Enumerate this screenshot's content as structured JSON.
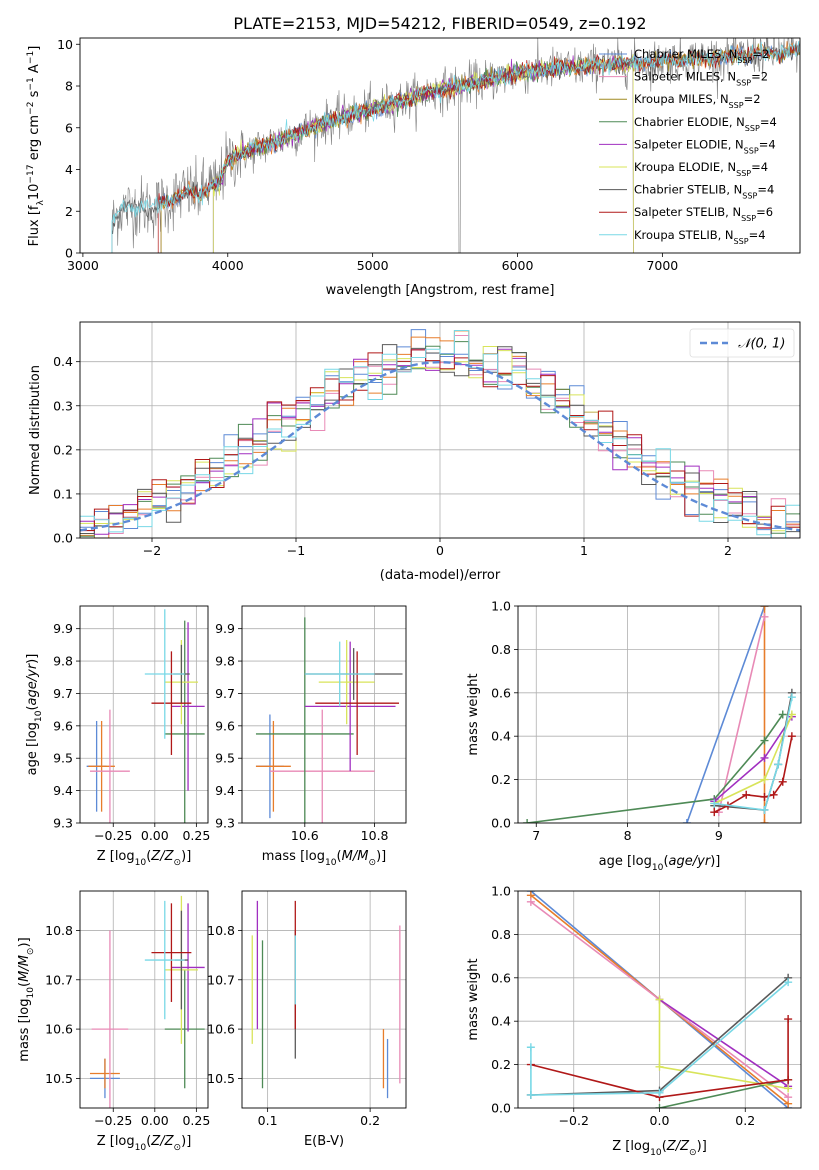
{
  "page_title": "PLATE=2153, MJD=54212, FIBERID=0549, z=0.192",
  "colors": {
    "Chabrier MILES": "#5d8ad6",
    "Salpeter MILES": "#e88ab6",
    "Kroupa MILES": "#a08a20",
    "Chabrier ELODIE": "#4e8a56",
    "Salpeter ELODIE": "#a12fc0",
    "Kroupa ELODIE": "#d8e45a",
    "Chabrier STELIB": "#5a5a5a",
    "Salpeter STELIB": "#b01818",
    "Kroupa STELIB": "#78d8e6",
    "extra_orange": "#e77d2b",
    "data_gray": "#808080",
    "gauss": "#5d8ad6"
  },
  "chart_data": [
    {
      "id": "spectrum",
      "type": "line",
      "title": "PLATE=2153, MJD=54212, FIBERID=0549, z=0.192",
      "xlabel": "wavelength [Angstrom, rest frame]",
      "ylabel": "Flux [f_λ 10^-17 erg cm^-2 s^-1 A^-1]",
      "xlim": [
        2980,
        7950
      ],
      "ylim": [
        0,
        10.3
      ],
      "xticks": [
        "3000",
        "4000",
        "5000",
        "6000",
        "7000"
      ],
      "yticks": [
        "0",
        "2",
        "4",
        "6",
        "8",
        "10"
      ],
      "legend_position": "top-right",
      "series": [
        {
          "name": "Chabrier MILES, N_SSP=2",
          "x_range": [
            3540,
            7950
          ]
        },
        {
          "name": "Salpeter MILES, N_SSP=2",
          "x_range": [
            3540,
            7950
          ]
        },
        {
          "name": "Kroupa MILES, N_SSP=2",
          "x_range": [
            3540,
            7950
          ]
        },
        {
          "name": "Chabrier ELODIE, N_SSP=4",
          "x_range": [
            3900,
            6800
          ]
        },
        {
          "name": "Salpeter ELODIE, N_SSP=4",
          "x_range": [
            3900,
            6800
          ]
        },
        {
          "name": "Kroupa ELODIE, N_SSP=4",
          "x_range": [
            3900,
            6800
          ]
        },
        {
          "name": "Chabrier STELIB, N_SSP=4",
          "x_range": [
            3200,
            7950
          ]
        },
        {
          "name": "Salpeter STELIB, N_SSP=6",
          "x_range": [
            3520,
            7950
          ]
        },
        {
          "name": "Kroupa STELIB, N_SSP=4",
          "x_range": [
            3200,
            7950
          ]
        }
      ],
      "continuum": [
        [
          3200,
          1.3
        ],
        [
          3230,
          1.8
        ],
        [
          3260,
          2.1
        ],
        [
          3350,
          2.2
        ],
        [
          3500,
          2.2
        ],
        [
          3600,
          2.5
        ],
        [
          3700,
          2.9
        ],
        [
          3800,
          2.8
        ],
        [
          3880,
          3.3
        ],
        [
          3930,
          3.2
        ],
        [
          4000,
          4.4
        ],
        [
          4100,
          4.8
        ],
        [
          4200,
          5.0
        ],
        [
          4300,
          5.3
        ],
        [
          4400,
          5.5
        ],
        [
          4600,
          6.1
        ],
        [
          4800,
          6.5
        ],
        [
          5000,
          6.9
        ],
        [
          5200,
          7.3
        ],
        [
          5400,
          7.7
        ],
        [
          5600,
          8.0
        ],
        [
          5800,
          8.3
        ],
        [
          6000,
          8.6
        ],
        [
          6200,
          8.8
        ],
        [
          6400,
          8.9
        ],
        [
          6600,
          9.0
        ],
        [
          6800,
          9.1
        ],
        [
          7000,
          9.2
        ],
        [
          7200,
          9.3
        ],
        [
          7400,
          9.4
        ],
        [
          7600,
          9.5
        ],
        [
          7800,
          9.6
        ],
        [
          7950,
          9.7
        ]
      ]
    },
    {
      "id": "residuals",
      "type": "histogram",
      "xlabel": "(data-model)/error",
      "ylabel": "Normed distribution",
      "xlim": [
        -2.5,
        2.5
      ],
      "ylim": [
        0,
        0.49
      ],
      "xticks": [
        "−2",
        "−1",
        "0",
        "1",
        "2"
      ],
      "yticks": [
        "0.0",
        "0.1",
        "0.2",
        "0.3",
        "0.4"
      ],
      "bin_width": 0.1,
      "gauss_label": "𝒩(0, 1)",
      "legend_position": "top-right",
      "grid": true
    },
    {
      "id": "age_vs_Z",
      "type": "errorbar",
      "xlabel": "Z [log10(Z/Z⊙)]",
      "ylabel": "age [log10(age/yr)]",
      "xlim": [
        -0.45,
        0.32
      ],
      "ylim": [
        9.3,
        9.97
      ],
      "xticks": [
        "−0.25",
        "0.00",
        "0.25"
      ],
      "yticks": [
        "9.3",
        "9.4",
        "9.5",
        "9.6",
        "9.7",
        "9.8",
        "9.9"
      ],
      "points": [
        {
          "s": "Chabrier MILES",
          "x": -0.35,
          "xe": 0.06,
          "y": 9.475,
          "ye": 0.14
        },
        {
          "s": "extra_orange",
          "x": -0.32,
          "xe": 0.08,
          "y": 9.475,
          "ye": 0.14
        },
        {
          "s": "Salpeter MILES",
          "x": -0.27,
          "xe": 0.12,
          "y": 9.46,
          "ye": 0.19
        },
        {
          "s": "Chabrier ELODIE",
          "x": 0.18,
          "xe": 0.12,
          "y": 9.575,
          "ye": 0.35
        },
        {
          "s": "Salpeter ELODIE",
          "x": 0.2,
          "xe": 0.1,
          "y": 9.66,
          "ye": 0.26
        },
        {
          "s": "Kroupa ELODIE",
          "x": 0.16,
          "xe": 0.1,
          "y": 9.735,
          "ye": 0.13
        },
        {
          "s": "Chabrier STELIB",
          "x": 0.16,
          "xe": 0.05,
          "y": 9.76,
          "ye": 0.09
        },
        {
          "s": "Salpeter STELIB",
          "x": 0.1,
          "xe": 0.12,
          "y": 9.67,
          "ye": 0.16
        },
        {
          "s": "Kroupa STELIB",
          "x": 0.06,
          "xe": 0.12,
          "y": 9.76,
          "ye": 0.2
        }
      ]
    },
    {
      "id": "age_vs_mass",
      "type": "errorbar",
      "xlabel": "mass [log10(M/M⊙)]",
      "ylabel": "",
      "xlim": [
        10.42,
        10.89
      ],
      "ylim": [
        9.3,
        9.97
      ],
      "xticks": [
        "10.6",
        "10.8"
      ],
      "yticks": [
        "9.3",
        "9.4",
        "9.5",
        "9.6",
        "9.7",
        "9.8",
        "9.9"
      ],
      "points": [
        {
          "s": "Chabrier MILES",
          "x": 10.5,
          "xe": 0.04,
          "y": 9.475,
          "ye": 0.16
        },
        {
          "s": "extra_orange",
          "x": 10.51,
          "xe": 0.05,
          "y": 9.475,
          "ye": 0.14
        },
        {
          "s": "Salpeter MILES",
          "x": 10.65,
          "xe": 0.15,
          "y": 9.46,
          "ye": 0.19
        },
        {
          "s": "Chabrier ELODIE",
          "x": 10.6,
          "xe": 0.14,
          "y": 9.575,
          "ye": 0.36
        },
        {
          "s": "Salpeter ELODIE",
          "x": 10.73,
          "xe": 0.13,
          "y": 9.66,
          "ye": 0.2
        },
        {
          "s": "Kroupa ELODIE",
          "x": 10.72,
          "xe": 0.08,
          "y": 9.735,
          "ye": 0.13
        },
        {
          "s": "Chabrier STELIB",
          "x": 10.74,
          "xe": 0.14,
          "y": 9.76,
          "ye": 0.08
        },
        {
          "s": "Salpeter STELIB",
          "x": 10.75,
          "xe": 0.12,
          "y": 9.67,
          "ye": 0.16
        },
        {
          "s": "Kroupa STELIB",
          "x": 10.7,
          "xe": 0.1,
          "y": 9.76,
          "ye": 0.1
        }
      ]
    },
    {
      "id": "weight_vs_age",
      "type": "line",
      "xlabel": "age [log10(age/yr)]",
      "ylabel": "mass weight",
      "xlim": [
        6.8,
        9.9
      ],
      "ylim": [
        0,
        1
      ],
      "xticks": [
        "7",
        "8",
        "9"
      ],
      "yticks": [
        "0.0",
        "0.2",
        "0.4",
        "0.6",
        "0.8",
        "1.0"
      ],
      "grid": true,
      "series": [
        {
          "s": "Chabrier MILES",
          "pts": [
            [
              8.65,
              0.0
            ],
            [
              9.5,
              1.0
            ]
          ]
        },
        {
          "s": "extra_orange",
          "pts": [
            [
              9.5,
              0.0
            ],
            [
              9.5,
              1.0
            ]
          ]
        },
        {
          "s": "Salpeter MILES",
          "pts": [
            [
              9.0,
              0.05
            ],
            [
              9.5,
              0.95
            ]
          ]
        },
        {
          "s": "Chabrier ELODIE",
          "pts": [
            [
              6.9,
              0.0
            ],
            [
              8.95,
              0.11
            ],
            [
              9.5,
              0.38
            ],
            [
              9.7,
              0.5
            ]
          ]
        },
        {
          "s": "Salpeter ELODIE",
          "pts": [
            [
              8.95,
              0.1
            ],
            [
              9.5,
              0.3
            ],
            [
              9.8,
              0.49
            ]
          ]
        },
        {
          "s": "Kroupa ELODIE",
          "pts": [
            [
              8.95,
              0.09
            ],
            [
              9.5,
              0.2
            ],
            [
              9.8,
              0.5
            ]
          ]
        },
        {
          "s": "Chabrier STELIB",
          "pts": [
            [
              8.95,
              0.08
            ],
            [
              9.5,
              0.06
            ],
            [
              9.65,
              0.27
            ],
            [
              9.8,
              0.6
            ]
          ]
        },
        {
          "s": "Salpeter STELIB",
          "pts": [
            [
              8.95,
              0.05
            ],
            [
              9.1,
              0.08
            ],
            [
              9.3,
              0.13
            ],
            [
              9.5,
              0.12
            ],
            [
              9.6,
              0.13
            ],
            [
              9.7,
              0.19
            ],
            [
              9.8,
              0.4
            ]
          ]
        },
        {
          "s": "Kroupa STELIB",
          "pts": [
            [
              8.95,
              0.09
            ],
            [
              9.5,
              0.06
            ],
            [
              9.65,
              0.27
            ],
            [
              9.8,
              0.58
            ]
          ]
        }
      ]
    },
    {
      "id": "mass_vs_Z",
      "type": "errorbar",
      "xlabel": "Z [log10(Z/Z⊙)]",
      "ylabel": "mass [log10(M/M⊙)]",
      "xlim": [
        -0.45,
        0.32
      ],
      "ylim": [
        10.44,
        10.88
      ],
      "xticks": [
        "−0.25",
        "0.00",
        "0.25"
      ],
      "yticks": [
        "10.5",
        "10.6",
        "10.7",
        "10.8"
      ],
      "points": [
        {
          "s": "Chabrier MILES",
          "x": -0.3,
          "xe": 0.09,
          "y": 10.5,
          "ye": 0.04
        },
        {
          "s": "extra_orange",
          "x": -0.3,
          "xe": 0.09,
          "y": 10.51,
          "ye": 0.03
        },
        {
          "s": "Salpeter MILES",
          "x": -0.27,
          "xe": 0.11,
          "y": 10.6,
          "ye": 0.2
        },
        {
          "s": "Chabrier ELODIE",
          "x": 0.18,
          "xe": 0.12,
          "y": 10.6,
          "ye": 0.12
        },
        {
          "s": "Salpeter ELODIE",
          "x": 0.2,
          "xe": 0.1,
          "y": 10.725,
          "ye": 0.13
        },
        {
          "s": "Kroupa ELODIE",
          "x": 0.16,
          "xe": 0.1,
          "y": 10.72,
          "ye": 0.15
        },
        {
          "s": "Chabrier STELIB",
          "x": 0.16,
          "xe": 0.04,
          "y": 10.74,
          "ye": 0.1
        },
        {
          "s": "Salpeter STELIB",
          "x": 0.1,
          "xe": 0.12,
          "y": 10.755,
          "ye": 0.1
        },
        {
          "s": "Kroupa STELIB",
          "x": 0.06,
          "xe": 0.12,
          "y": 10.74,
          "ye": 0.12
        }
      ]
    },
    {
      "id": "mass_vs_ebv",
      "type": "errorbar",
      "xlabel": "E(B-V)",
      "ylabel": "",
      "xlim": [
        0.075,
        0.235
      ],
      "ylim": [
        10.44,
        10.88
      ],
      "xticks": [
        "0.1",
        "0.2"
      ],
      "yticks": [
        "10.5",
        "10.6",
        "10.7",
        "10.8"
      ],
      "points": [
        {
          "s": "Kroupa ELODIE",
          "x": 0.085,
          "y": 10.68,
          "ye": 0.11
        },
        {
          "s": "Salpeter ELODIE",
          "x": 0.09,
          "y": 10.73,
          "ye": 0.13
        },
        {
          "s": "Chabrier ELODIE",
          "x": 0.095,
          "y": 10.63,
          "ye": 0.15
        },
        {
          "s": "Chabrier STELIB",
          "x": 0.127,
          "y": 10.67,
          "ye": 0.13
        },
        {
          "s": "Salpeter STELIB",
          "x": 0.127,
          "y": 10.73,
          "ye": 0.13
        },
        {
          "s": "Kroupa STELIB",
          "x": 0.127,
          "y": 10.72,
          "ye": 0.07
        },
        {
          "s": "extra_orange",
          "x": 0.213,
          "y": 10.54,
          "ye": 0.06
        },
        {
          "s": "Chabrier MILES",
          "x": 0.217,
          "y": 10.52,
          "ye": 0.06
        },
        {
          "s": "Salpeter MILES",
          "x": 0.229,
          "y": 10.65,
          "ye": 0.16
        }
      ]
    },
    {
      "id": "weight_vs_Z",
      "type": "line",
      "xlabel": "Z [log10(Z/Z⊙)]",
      "ylabel": "mass weight",
      "xlim": [
        -0.33,
        0.33
      ],
      "ylim": [
        0,
        1
      ],
      "xticks": [
        "−0.2",
        "0.0",
        "0.2"
      ],
      "yticks": [
        "0.0",
        "0.2",
        "0.4",
        "0.6",
        "0.8",
        "1.0"
      ],
      "grid": true,
      "series": [
        {
          "s": "Chabrier MILES",
          "pts": [
            [
              -0.3,
              1.0
            ],
            [
              0.3,
              0.0
            ]
          ]
        },
        {
          "s": "extra_orange",
          "pts": [
            [
              -0.3,
              0.98
            ],
            [
              0.3,
              0.02
            ]
          ]
        },
        {
          "s": "Salpeter MILES",
          "pts": [
            [
              -0.3,
              0.95
            ],
            [
              0.3,
              0.05
            ]
          ]
        },
        {
          "s": "Chabrier ELODIE",
          "pts": [
            [
              0.0,
              0.0
            ],
            [
              0.3,
              0.13
            ]
          ]
        },
        {
          "s": "Salpeter ELODIE",
          "pts": [
            [
              0.0,
              0.5
            ],
            [
              0.3,
              0.1
            ]
          ]
        },
        {
          "s": "Kroupa ELODIE",
          "pts": [
            [
              0.0,
              0.5
            ],
            [
              0.0,
              0.19
            ],
            [
              0.3,
              0.09
            ]
          ]
        },
        {
          "s": "Chabrier STELIB",
          "pts": [
            [
              -0.3,
              0.06
            ],
            [
              0.0,
              0.08
            ],
            [
              0.3,
              0.6
            ]
          ]
        },
        {
          "s": "Salpeter STELIB",
          "pts": [
            [
              -0.3,
              0.2
            ],
            [
              0.0,
              0.05
            ],
            [
              0.3,
              0.13
            ],
            [
              0.3,
              0.41
            ]
          ]
        },
        {
          "s": "Kroupa STELIB",
          "pts": [
            [
              -0.3,
              0.28
            ],
            [
              -0.3,
              0.06
            ],
            [
              0.0,
              0.07
            ],
            [
              0.3,
              0.58
            ]
          ]
        }
      ]
    }
  ]
}
